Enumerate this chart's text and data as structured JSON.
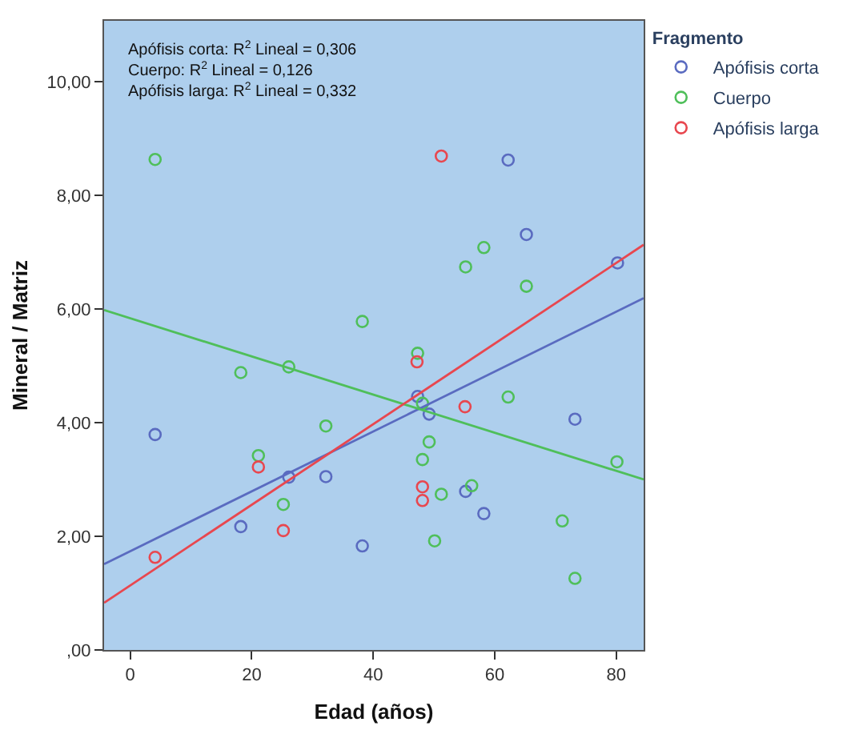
{
  "chart_data": {
    "type": "scatter",
    "xlabel": "Edad (años)",
    "ylabel": "Mineral / Matriz",
    "legend_title": "Fragmento",
    "legend": "top right",
    "marker": "circle",
    "grid": false,
    "annotations": [
      "Apófisis corta: R$^{2}$ Lineal = 0,306",
      "Cuerpo: R$^{2}$ Lineal = 0,126",
      "Apófisis larga: R$^{2}$ Lineal = 0,332"
    ],
    "xlim": [
      -4.3,
      84.5
    ],
    "ylim": [
      0,
      11.07
    ],
    "xticks": [
      0,
      20,
      40,
      60,
      80
    ],
    "yticks": [
      {
        "value": 0,
        "label": ",00"
      },
      {
        "value": 2,
        "label": "2,00"
      },
      {
        "value": 4,
        "label": "4,00"
      },
      {
        "value": 6,
        "label": "6,00"
      },
      {
        "value": 8,
        "label": "8,00"
      },
      {
        "value": 10,
        "label": "10,00"
      }
    ],
    "series": [
      {
        "name": "Apófisis corta",
        "color": "#5a6bc0",
        "x": [
          62.2,
          65.2,
          80.2,
          4.1,
          18.2,
          26.1,
          32.2,
          38.2,
          47.3,
          49.2,
          73.2,
          55.2,
          58.2
        ],
        "values": [
          8.62,
          7.31,
          6.81,
          3.79,
          2.17,
          3.04,
          3.05,
          1.83,
          4.46,
          4.15,
          4.06,
          2.79,
          2.4
        ]
      },
      {
        "name": "Cuerpo",
        "color": "#4fbf5a",
        "x": [
          4.1,
          38.2,
          18.2,
          26.1,
          32.2,
          21.1,
          25.2,
          58.2,
          55.2,
          65.2,
          47.3,
          62.2,
          48.1,
          49.2,
          48.1,
          56.2,
          51.2,
          50.1,
          71.1,
          73.2,
          80.1
        ],
        "values": [
          8.63,
          5.78,
          4.88,
          4.98,
          3.94,
          3.42,
          2.56,
          7.08,
          6.74,
          6.4,
          5.22,
          4.45,
          4.34,
          3.66,
          3.35,
          2.89,
          2.74,
          1.92,
          2.27,
          1.26,
          3.31
        ]
      },
      {
        "name": "Apófisis larga",
        "color": "#e8474f",
        "x": [
          51.2,
          47.2,
          4.1,
          21.1,
          25.2,
          55.1,
          48.1,
          48.1
        ],
        "values": [
          8.69,
          5.07,
          1.63,
          3.22,
          2.1,
          4.28,
          2.87,
          2.63
        ]
      },
      {
        "type": "line",
        "marker": "none",
        "color": "#5a6bc0",
        "x": [
          -4.3,
          84.5
        ],
        "values": [
          1.51,
          6.19
        ]
      },
      {
        "type": "line",
        "marker": "none",
        "color": "#4fbf5a",
        "x": [
          -4.3,
          84.5
        ],
        "values": [
          5.98,
          3.0
        ]
      },
      {
        "type": "line",
        "marker": "none",
        "color": "#e8474f",
        "x": [
          -4.3,
          84.5
        ],
        "values": [
          0.83,
          7.13
        ]
      }
    ]
  }
}
